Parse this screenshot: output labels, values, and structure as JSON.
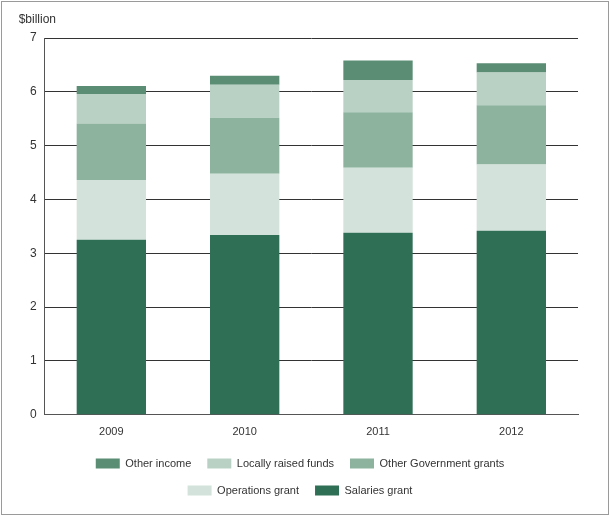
{
  "chart_data": {
    "type": "bar",
    "stacked": true,
    "y_label": "$billion",
    "categories": [
      "2009",
      "2010",
      "2011",
      "2012"
    ],
    "series": [
      {
        "name": "Salaries grant",
        "color": "#2f6f56",
        "values": [
          3.25,
          3.34,
          3.38,
          3.42
        ]
      },
      {
        "name": "Operations grant",
        "color": "#d3e2da",
        "values": [
          1.11,
          1.14,
          1.21,
          1.23
        ]
      },
      {
        "name": "Other Government grants",
        "color": "#8db39e",
        "values": [
          1.05,
          1.04,
          1.03,
          1.1
        ]
      },
      {
        "name": "Locally raised funds",
        "color": "#b9d1c4",
        "values": [
          0.55,
          0.61,
          0.6,
          0.61
        ]
      },
      {
        "name": "Other income",
        "color": "#5b8d74",
        "values": [
          0.15,
          0.17,
          0.36,
          0.17
        ]
      }
    ],
    "ylim": [
      0,
      7
    ],
    "yticks": [
      0,
      1,
      2,
      3,
      4,
      5,
      6,
      7
    ],
    "grid": true,
    "legend": "bottom"
  }
}
